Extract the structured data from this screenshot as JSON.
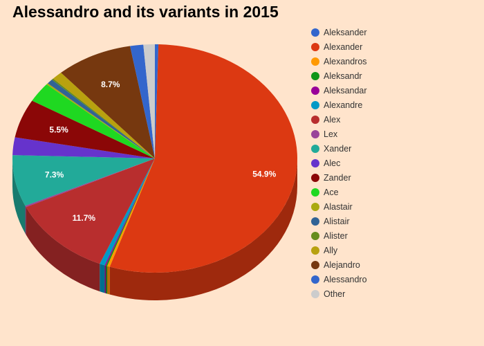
{
  "chart_data": {
    "type": "pie",
    "title": "Alessandro and its variants in 2015",
    "slices": [
      {
        "label": "Aleksander",
        "value": 0.4,
        "color": "#3366cc"
      },
      {
        "label": "Alexander",
        "value": 54.9,
        "color": "#dc3912",
        "data_label": "54.9%"
      },
      {
        "label": "Alexandros",
        "value": 0.3,
        "color": "#ff9900"
      },
      {
        "label": "Aleksandr",
        "value": 0.15,
        "color": "#109618"
      },
      {
        "label": "Aleksandar",
        "value": 0.15,
        "color": "#990099"
      },
      {
        "label": "Alexandre",
        "value": 0.6,
        "color": "#0099c6"
      },
      {
        "label": "Alex",
        "value": 11.7,
        "color": "#b82e2e",
        "data_label": "11.7%"
      },
      {
        "label": "Lex",
        "value": 0.2,
        "color": "#994499"
      },
      {
        "label": "Xander",
        "value": 7.3,
        "color": "#22aa99",
        "data_label": "7.3%"
      },
      {
        "label": "Alec",
        "value": 2.5,
        "color": "#6633cc"
      },
      {
        "label": "Zander",
        "value": 5.5,
        "color": "#8b0707",
        "data_label": "5.5%"
      },
      {
        "label": "Ace",
        "value": 2.8,
        "color": "#1fd821"
      },
      {
        "label": "Alastair",
        "value": 0.2,
        "color": "#aaaa11"
      },
      {
        "label": "Alistair",
        "value": 0.7,
        "color": "#316395"
      },
      {
        "label": "Alister",
        "value": 0.2,
        "color": "#668d1c"
      },
      {
        "label": "Ally",
        "value": 1.2,
        "color": "#b8a10f"
      },
      {
        "label": "Alejandro",
        "value": 8.7,
        "color": "#76380f",
        "data_label": "8.7%"
      },
      {
        "label": "Alessandro",
        "value": 1.5,
        "color": "#3366cc"
      },
      {
        "label": "Other",
        "value": 1.3,
        "color": "#cccccc"
      }
    ],
    "legend": "right"
  }
}
